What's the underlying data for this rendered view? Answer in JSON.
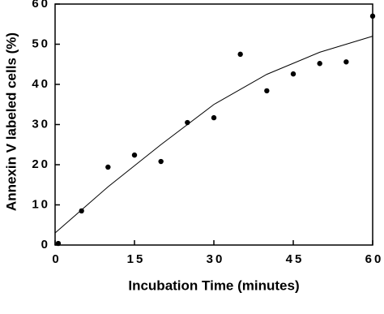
{
  "chart_data": {
    "type": "scatter",
    "x_label": "Incubation Time (minutes)",
    "y_label": "Annexin V labeled cells (%)",
    "points": {
      "x": [
        0.6,
        5,
        10,
        15,
        20,
        25,
        30,
        35,
        40,
        45,
        50,
        55,
        60
      ],
      "y": [
        0.4,
        8.5,
        19.4,
        22.4,
        20.8,
        30.5,
        31.7,
        47.5,
        38.4,
        42.6,
        45.2,
        45.6,
        57
      ]
    },
    "fit": {
      "x": [
        0,
        10,
        20,
        30,
        40,
        50,
        60
      ],
      "y": [
        3,
        14.5,
        25,
        35,
        42.5,
        48,
        52
      ]
    },
    "color": "#000000",
    "xlim": [
      0,
      60
    ],
    "xticks": [
      0,
      15,
      30,
      45,
      60
    ],
    "ylim": [
      0,
      60
    ],
    "yticks": [
      0,
      10,
      20,
      30,
      40,
      50,
      60
    ]
  }
}
